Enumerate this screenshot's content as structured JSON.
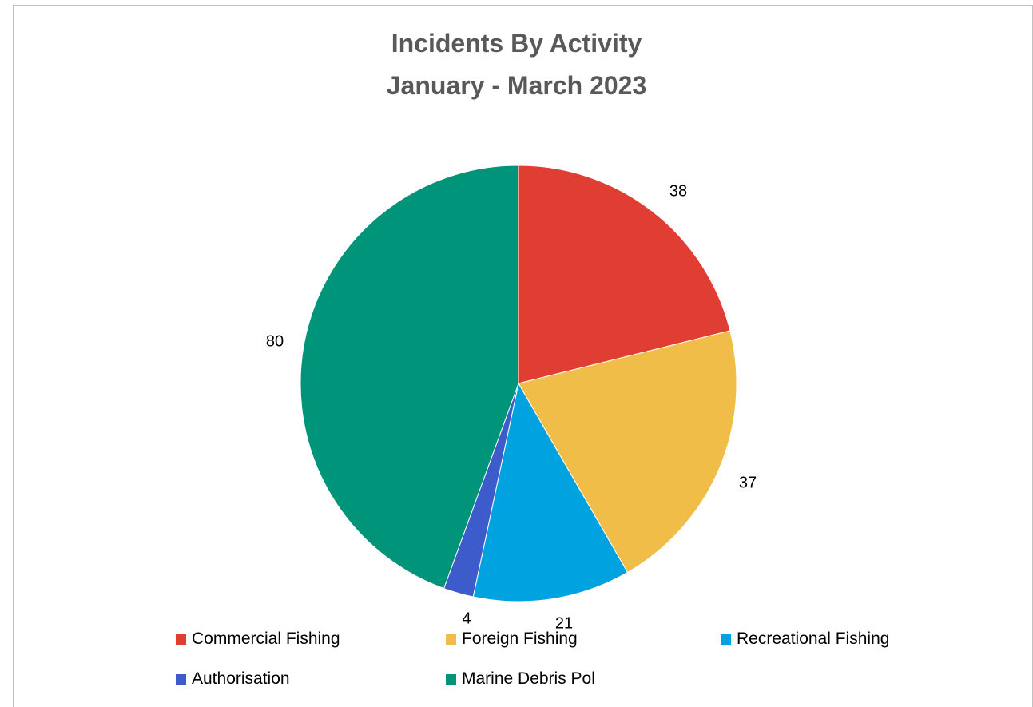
{
  "chart_data": {
    "type": "pie",
    "title": "Incidents By Activity",
    "subtitle": "January - March 2023",
    "categories": [
      "Commercial Fishing",
      "Foreign Fishing",
      "Recreational Fishing",
      "Authorisation",
      "Marine Debris Pol"
    ],
    "values": [
      38,
      37,
      21,
      4,
      80
    ],
    "data_labels": [
      "38",
      "37",
      "21",
      "4",
      "80"
    ],
    "colors": [
      "#E03E32",
      "#F0BE48",
      "#00A3E0",
      "#3E5BCB",
      "#00957A"
    ],
    "start_angle_deg": 0,
    "direction": "clockwise",
    "legend_position": "bottom"
  }
}
